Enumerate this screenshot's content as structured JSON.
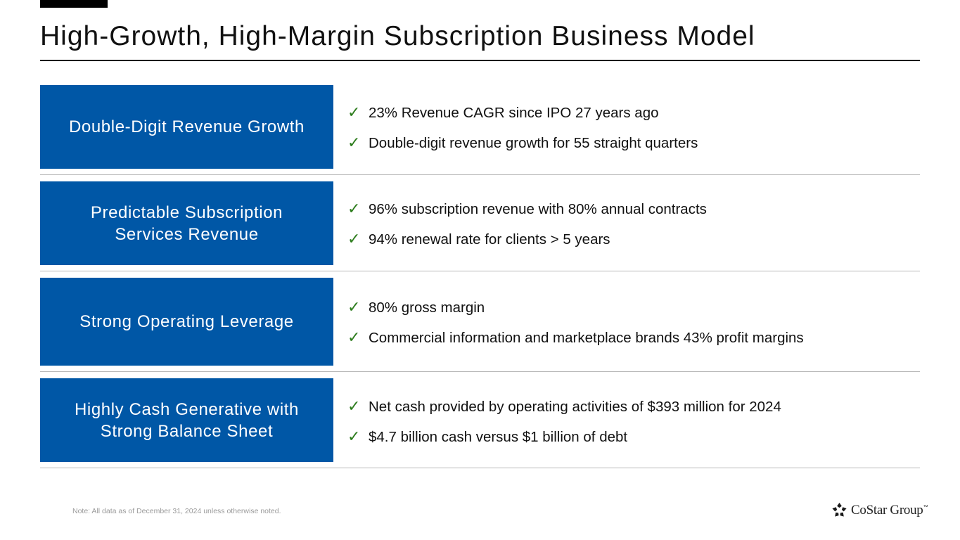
{
  "title": "High-Growth, High-Margin Subscription Business Model",
  "rows": [
    {
      "box_lines": [
        "Double-Digit Revenue Growth"
      ],
      "bullets": [
        "23% Revenue CAGR since IPO 27 years ago",
        "Double-digit revenue growth for 55 straight quarters"
      ]
    },
    {
      "box_lines": [
        "Predictable Subscription",
        "Services Revenue"
      ],
      "bullets": [
        "96% subscription revenue with 80% annual contracts",
        "94% renewal rate for clients > 5 years"
      ]
    },
    {
      "box_lines": [
        "Strong Operating Leverage"
      ],
      "bullets": [
        "80% gross margin",
        "Commercial information and marketplace brands 43% profit margins"
      ]
    },
    {
      "box_lines": [
        "Highly Cash Generative with",
        "Strong Balance Sheet"
      ],
      "bullets": [
        "Net cash provided by operating activities of $393 million for 2024",
        "$4.7 billion cash versus $1 billion of debt"
      ]
    }
  ],
  "footnote": "Note: All data as of December 31, 2024 unless otherwise noted.",
  "logo": {
    "text": "CoStar Group",
    "mark": "™"
  },
  "icons": {
    "bullet": "checkmark-icon",
    "logo": "costar-logo-icon"
  },
  "colors": {
    "box": "#0057a6",
    "check": "#2e7d1e",
    "rule": "#000000",
    "separator": "#b8b8b8"
  }
}
